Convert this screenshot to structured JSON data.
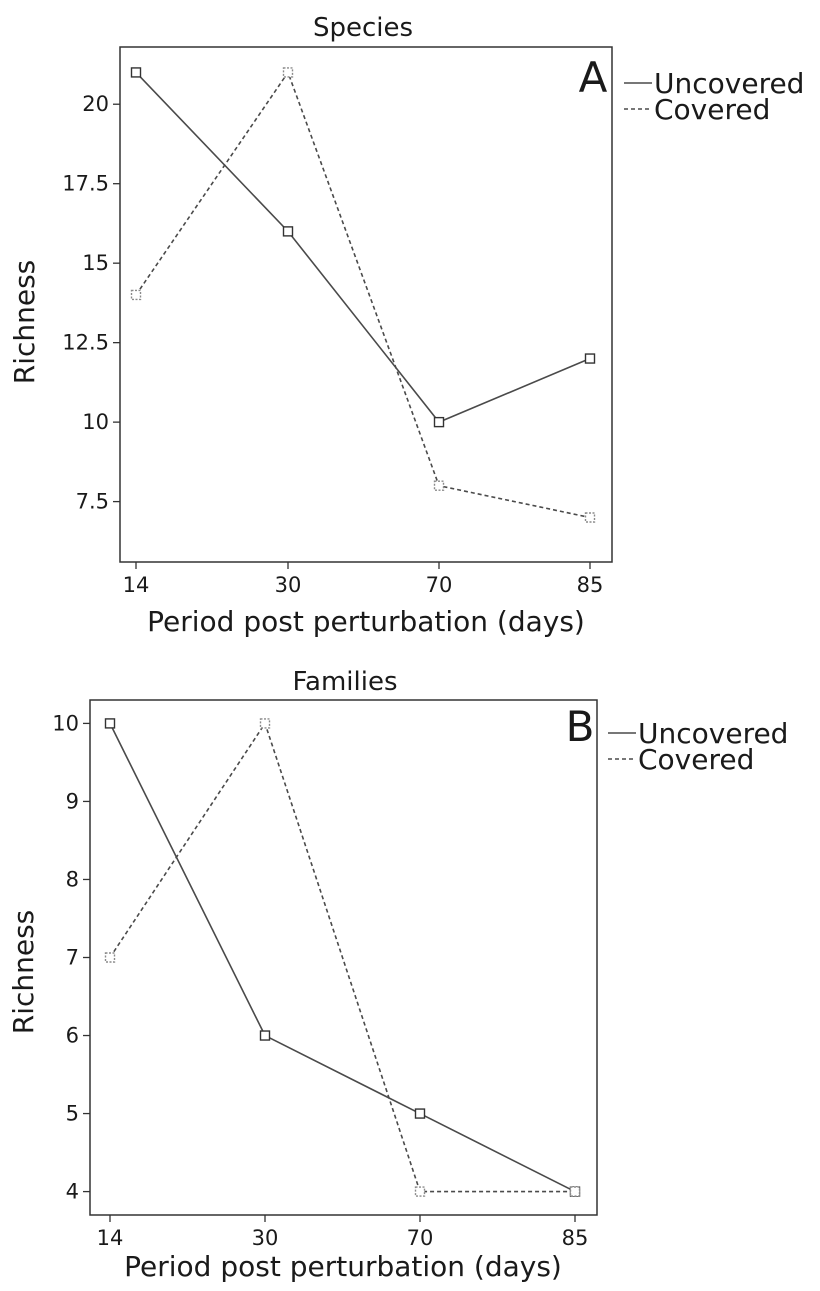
{
  "chart_data": [
    {
      "type": "line",
      "panel_letter": "A",
      "title": "Species",
      "xlabel": "Period post perturbation (days)",
      "ylabel": "Richness",
      "categories": [
        "14",
        "30",
        "70",
        "85"
      ],
      "ylim": [
        5.6,
        21.8
      ],
      "yticks": [
        7.5,
        10,
        12.5,
        15,
        17.5,
        20
      ],
      "ytick_labels": [
        "7.5",
        "10",
        "12.5",
        "15",
        "17.5",
        "20"
      ],
      "grid": false,
      "legend_position": "outside-right-top",
      "series": [
        {
          "name": "Uncovered",
          "style": "solid",
          "values": [
            21,
            16,
            10,
            12
          ]
        },
        {
          "name": "Covered",
          "style": "dashed",
          "values": [
            14,
            21,
            8,
            7
          ]
        }
      ]
    },
    {
      "type": "line",
      "panel_letter": "B",
      "title": "Families",
      "xlabel": "Period post perturbation (days)",
      "ylabel": "Richness",
      "categories": [
        "14",
        "30",
        "70",
        "85"
      ],
      "ylim": [
        3.7,
        10.3
      ],
      "yticks": [
        4,
        5,
        6,
        7,
        8,
        9,
        10
      ],
      "ytick_labels": [
        "4",
        "5",
        "6",
        "7",
        "8",
        "9",
        "10"
      ],
      "grid": false,
      "legend_position": "outside-right-top",
      "series": [
        {
          "name": "Uncovered",
          "style": "solid",
          "values": [
            10,
            6,
            5,
            4
          ]
        },
        {
          "name": "Covered",
          "style": "dashed",
          "values": [
            7,
            10,
            4,
            4
          ]
        }
      ]
    }
  ],
  "colors": {
    "line": "#4a4a4a",
    "frame": "#333333",
    "marker_fill": "#ffffff"
  }
}
